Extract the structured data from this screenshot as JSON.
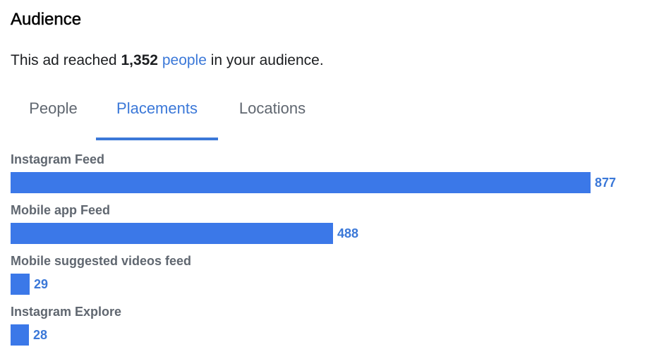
{
  "header": {
    "title": "Audience"
  },
  "summary": {
    "prefix": "This ad reached ",
    "count": "1,352",
    "link": "people",
    "suffix": " in your audience."
  },
  "tabs": [
    {
      "label": "People",
      "active": false
    },
    {
      "label": "Placements",
      "active": true
    },
    {
      "label": "Locations",
      "active": false
    }
  ],
  "colors": {
    "accent": "#3b78d8",
    "bar": "#3b78e8"
  },
  "placements": {
    "max": 877,
    "items": [
      {
        "label": "Instagram Feed",
        "value": 877,
        "value_label": "877"
      },
      {
        "label": "Mobile app Feed",
        "value": 488,
        "value_label": "488"
      },
      {
        "label": "Mobile suggested videos feed",
        "value": 29,
        "value_label": "29"
      },
      {
        "label": "Instagram Explore",
        "value": 28,
        "value_label": "28"
      }
    ]
  }
}
